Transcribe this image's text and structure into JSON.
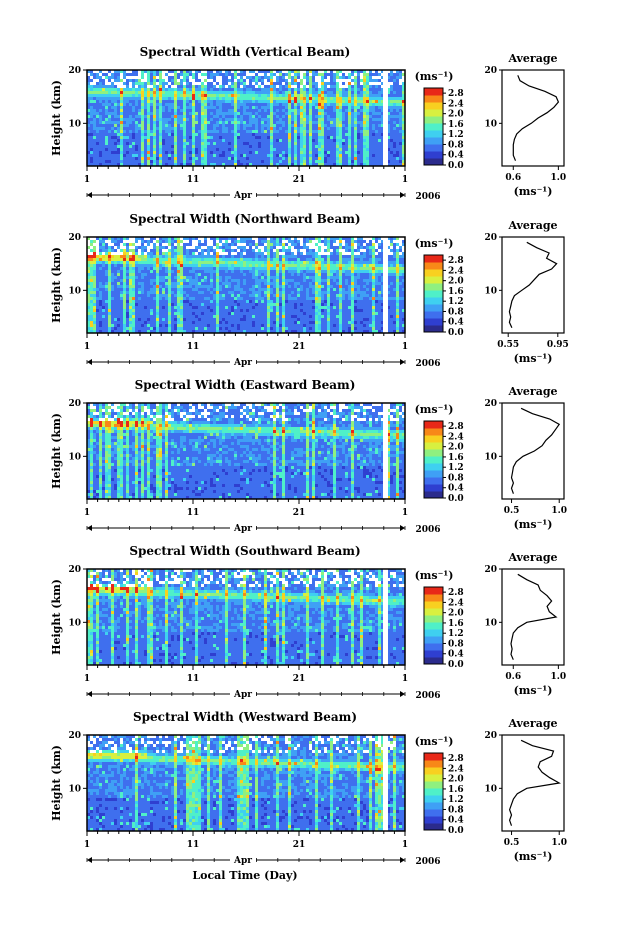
{
  "colorbar": {
    "unit": "(ms⁻¹)",
    "ticks": [
      "0.0",
      "0.4",
      "0.8",
      "1.2",
      "1.6",
      "2.0",
      "2.4",
      "2.8"
    ],
    "range": [
      0,
      3.0
    ],
    "colors": [
      "#2b2b8c",
      "#2f3fd0",
      "#3f6fee",
      "#3fa0f5",
      "#3fd0f0",
      "#4ff0c8",
      "#8ff080",
      "#d8f040",
      "#f8d020",
      "#f88818",
      "#e82818"
    ]
  },
  "shared": {
    "ylabel": "Height (km)",
    "yticks": [
      10,
      20
    ],
    "ylim": [
      2,
      20
    ],
    "xticks": [
      "1",
      "11",
      "21",
      "1"
    ],
    "month": "Apr",
    "year": "2006",
    "xlabel": "Local Time (Day)",
    "average_title": "Average",
    "average_unit": "(ms⁻¹)"
  },
  "chart_data": [
    {
      "type": "heatmap",
      "title": "Spectral Width (Vertical Beam)",
      "profile": {
        "type": "line",
        "xticks": [
          "0.6",
          "1.0"
        ],
        "xlim": [
          0.5,
          1.05
        ],
        "height_km": [
          3,
          4,
          5,
          6,
          7,
          8,
          9,
          10,
          11,
          12,
          13,
          14,
          15,
          16,
          17,
          18,
          19
        ],
        "values": [
          0.62,
          0.6,
          0.6,
          0.6,
          0.61,
          0.63,
          0.68,
          0.76,
          0.82,
          0.9,
          0.96,
          1.0,
          0.98,
          0.88,
          0.74,
          0.66,
          0.64
        ]
      }
    },
    {
      "type": "heatmap",
      "title": "Spectral Width (Northward Beam)",
      "profile": {
        "type": "line",
        "xticks": [
          "0.55",
          "0.95"
        ],
        "xlim": [
          0.5,
          1.0
        ],
        "height_km": [
          3,
          4,
          5,
          6,
          7,
          8,
          9,
          10,
          11,
          12,
          13,
          14,
          15,
          16,
          17,
          18,
          19
        ],
        "values": [
          0.58,
          0.56,
          0.57,
          0.56,
          0.57,
          0.58,
          0.6,
          0.66,
          0.72,
          0.76,
          0.8,
          0.9,
          0.94,
          0.86,
          0.88,
          0.78,
          0.7
        ]
      }
    },
    {
      "type": "heatmap",
      "title": "Spectral Width (Eastward Beam)",
      "profile": {
        "type": "line",
        "xticks": [
          "0.5",
          "1.0"
        ],
        "xlim": [
          0.4,
          1.05
        ],
        "height_km": [
          3,
          4,
          5,
          6,
          7,
          8,
          9,
          10,
          11,
          12,
          13,
          14,
          15,
          16,
          17,
          18,
          19
        ],
        "values": [
          0.52,
          0.5,
          0.52,
          0.5,
          0.51,
          0.52,
          0.55,
          0.62,
          0.74,
          0.82,
          0.86,
          0.92,
          0.96,
          1.0,
          0.9,
          0.72,
          0.6
        ]
      }
    },
    {
      "type": "heatmap",
      "title": "Spectral Width (Southward Beam)",
      "profile": {
        "type": "line",
        "xticks": [
          "0.6",
          "1.0"
        ],
        "xlim": [
          0.5,
          1.05
        ],
        "height_km": [
          3,
          4,
          5,
          6,
          7,
          8,
          9,
          10,
          11,
          12,
          13,
          14,
          15,
          16,
          17,
          18,
          19
        ],
        "values": [
          0.6,
          0.58,
          0.59,
          0.58,
          0.59,
          0.6,
          0.64,
          0.72,
          0.98,
          0.92,
          0.9,
          0.94,
          0.9,
          0.84,
          0.82,
          0.72,
          0.64
        ]
      }
    },
    {
      "type": "heatmap",
      "title": "Spectral Width (Westward Beam)",
      "profile": {
        "type": "line",
        "xticks": [
          "0.5",
          "1.0"
        ],
        "xlim": [
          0.4,
          1.05
        ],
        "height_km": [
          3,
          4,
          5,
          6,
          7,
          8,
          9,
          10,
          11,
          12,
          13,
          14,
          15,
          16,
          17,
          18,
          19
        ],
        "values": [
          0.5,
          0.48,
          0.5,
          0.48,
          0.5,
          0.52,
          0.56,
          0.66,
          1.0,
          0.9,
          0.82,
          0.78,
          0.8,
          0.92,
          0.94,
          0.72,
          0.6
        ]
      }
    }
  ]
}
